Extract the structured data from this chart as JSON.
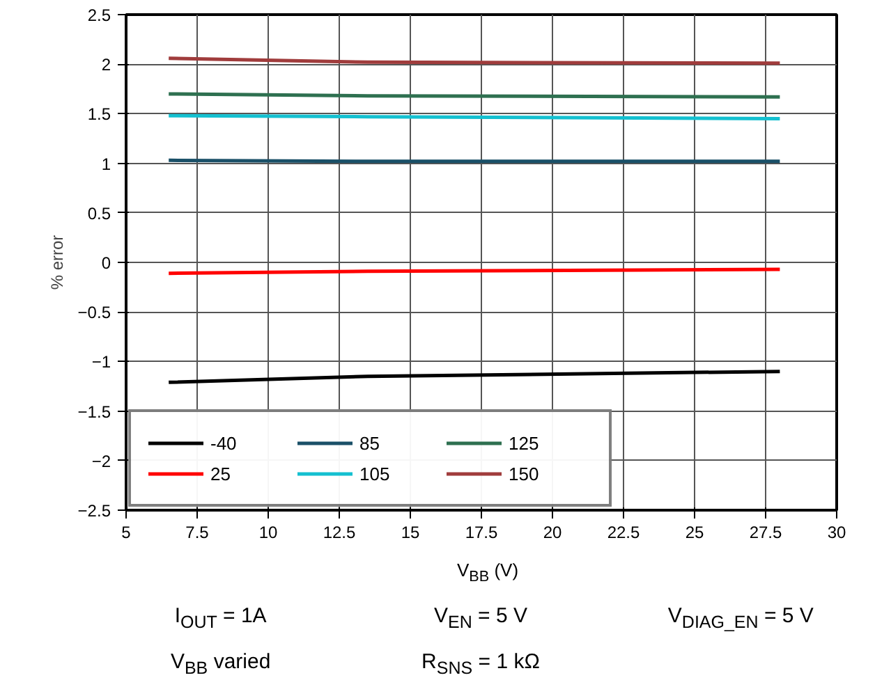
{
  "chart_data": {
    "type": "line",
    "xlabel": "V$_{BB}$ (V)",
    "ylabel": "% error",
    "xlim": [
      5,
      30
    ],
    "xticks": [
      5,
      7.5,
      10,
      12.5,
      15,
      17.5,
      20,
      22.5,
      25,
      27.5,
      30
    ],
    "ylim": [
      -2.5,
      2.5
    ],
    "yticks": [
      -2.5,
      -2,
      -1.5,
      -1,
      -0.5,
      0,
      0.5,
      1,
      1.5,
      2,
      2.5
    ],
    "grid": true,
    "legend": "bottom left",
    "line_style": "solid",
    "marker": "none",
    "x": [
      6.5,
      13.5,
      28
    ],
    "series": [
      {
        "name": "-40",
        "color": "#000000",
        "values": [
          -1.21,
          -1.15,
          -1.1
        ]
      },
      {
        "name": "25",
        "color": "#ff0000",
        "values": [
          -0.11,
          -0.09,
          -0.07
        ]
      },
      {
        "name": "85",
        "color": "#1a5068",
        "values": [
          1.03,
          1.02,
          1.02
        ]
      },
      {
        "name": "105",
        "color": "#14c0d0",
        "values": [
          1.48,
          1.47,
          1.45
        ]
      },
      {
        "name": "125",
        "color": "#2e7050",
        "values": [
          1.7,
          1.68,
          1.67
        ]
      },
      {
        "name": "150",
        "color": "#a03c3c",
        "values": [
          2.06,
          2.02,
          2.01
        ]
      }
    ],
    "annotations": [
      "I$_{OUT}$ = 1A",
      "V$_{EN}$ = 5 V",
      "V$_{DIAG_EN}$ = 5 V",
      "V$_{BB}$ varied",
      "R$_{SNS}$ = 1 kΩ"
    ]
  }
}
